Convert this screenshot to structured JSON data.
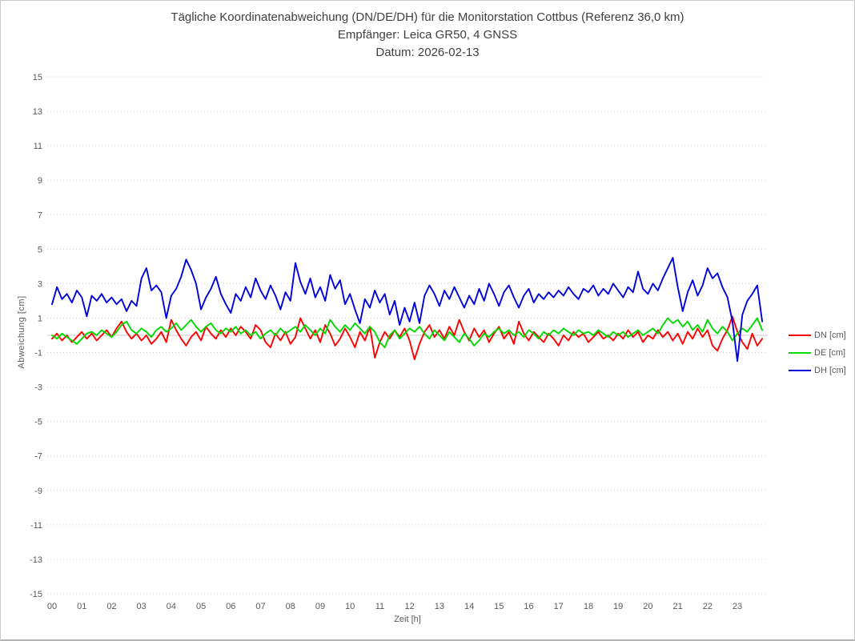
{
  "window": {
    "background": "#ffffff",
    "border_color": "#c9c9c9"
  },
  "title": {
    "line1": "Tägliche Koordinatenabweichung (DN/DE/DH) für die Monitorstation Cottbus (Referenz 36,0 km)",
    "line2": "Empfänger: Leica GR50, 4 GNSS",
    "line3": "Datum: 2026-02-13"
  },
  "axes": {
    "y_label": "Abweichung [cm]",
    "x_label": "Zeit [h]",
    "y_ticks": [
      "15",
      "13",
      "11",
      "9",
      "7",
      "5",
      "3",
      "1",
      "-1",
      "-3",
      "-5",
      "-7",
      "-9",
      "-11",
      "-13",
      "-15"
    ],
    "x_ticks": [
      "00",
      "01",
      "02",
      "03",
      "04",
      "05",
      "06",
      "07",
      "08",
      "09",
      "10",
      "11",
      "12",
      "13",
      "14",
      "15",
      "16",
      "17",
      "18",
      "19",
      "20",
      "21",
      "22",
      "23"
    ]
  },
  "legend": {
    "items": [
      {
        "label": "DN [cm]",
        "color": "#ff0000"
      },
      {
        "label": "DE [cm]",
        "color": "#00d900"
      },
      {
        "label": "DH [cm]",
        "color": "#0000dd"
      }
    ]
  },
  "colors": {
    "gridline": "#d6d6d6",
    "zero_line": "#c8c8c8",
    "tick_text": "#595959",
    "title_text": "#3f3f3f"
  },
  "chart_data": {
    "type": "line",
    "title": "Tägliche Koordinatenabweichung (DN/DE/DH) für die Monitorstation Cottbus (Referenz 36,0 km)",
    "subtitle": "Empfänger: Leica GR50, 4 GNSS",
    "date_label": "Datum: 2026-02-13",
    "xlabel": "Zeit [h]",
    "ylabel": "Abweichung [cm]",
    "xlim_hours": [
      0,
      24
    ],
    "ylim": [
      -15,
      15
    ],
    "y_tick_step": 2,
    "grid": "horizontal-dotted",
    "legend_position": "right",
    "x_start_hour": 0,
    "sample_interval_minutes": 10,
    "series": [
      {
        "name": "DN [cm]",
        "color": "#ff0000",
        "values": [
          -0.2,
          0.1,
          -0.3,
          0,
          -0.4,
          -0.1,
          0.2,
          -0.2,
          0.1,
          -0.3,
          0,
          0.3,
          -0.1,
          0.4,
          0.8,
          0.2,
          -0.2,
          0.1,
          -0.3,
          0,
          -0.5,
          -0.2,
          0.2,
          -0.4,
          0.9,
          0.3,
          -0.2,
          -0.6,
          -0.1,
          0.2,
          -0.3,
          0.5,
          0.1,
          -0.2,
          0.3,
          -0.1,
          0.4,
          0,
          0.5,
          0.2,
          -0.2,
          0.6,
          0.3,
          -0.4,
          -0.7,
          0.1,
          -0.3,
          0.2,
          -0.5,
          -0.1,
          1,
          0.4,
          -0.2,
          0.3,
          -0.4,
          0.6,
          0.1,
          -0.6,
          -0.2,
          0.4,
          -0.1,
          -0.7,
          0.2,
          -0.3,
          0.5,
          -1.3,
          -0.4,
          0.2,
          -0.2,
          0.3,
          -0.1,
          0.4,
          -0.3,
          -1.4,
          -0.5,
          0.2,
          0.6,
          -0.1,
          0.3,
          -0.2,
          0.5,
          0,
          0.9,
          0.2,
          -0.3,
          0.4,
          -0.1,
          0.3,
          -0.4,
          0.1,
          0.5,
          -0.2,
          0.2,
          -0.5,
          0.8,
          0.1,
          -0.3,
          0.2,
          -0.1,
          -0.4,
          0.1,
          -0.2,
          -0.6,
          0,
          -0.3,
          0.2,
          -0.1,
          0.1,
          -0.4,
          -0.1,
          0.2,
          -0.2,
          0,
          -0.3,
          0.1,
          -0.2,
          0.3,
          -0.1,
          0.2,
          -0.4,
          0,
          -0.2,
          0.3,
          -0.1,
          0.2,
          -0.3,
          0.1,
          -0.5,
          0.2,
          -0.2,
          0.4,
          -0.1,
          0.3,
          -0.6,
          -0.9,
          -0.2,
          0.3,
          1.1,
          0.2,
          -0.4,
          -0.8,
          0.1,
          -0.6,
          -0.2
        ]
      },
      {
        "name": "DE [cm]",
        "color": "#00d900",
        "values": [
          0,
          -0.2,
          0.1,
          -0.1,
          -0.3,
          -0.5,
          -0.2,
          0.1,
          0.2,
          0,
          0.3,
          0.1,
          -0.1,
          0.2,
          0.6,
          0.8,
          0.3,
          0.1,
          0.4,
          0.2,
          -0.1,
          0.3,
          0.5,
          0.2,
          0.4,
          0.7,
          0.3,
          0.6,
          0.9,
          0.5,
          0.2,
          0.5,
          0.7,
          0.3,
          0.1,
          0.4,
          0.2,
          0.5,
          0.1,
          0.3,
          0,
          0.2,
          -0.2,
          0.1,
          0.3,
          0,
          0.4,
          0.1,
          0.3,
          0.5,
          0.2,
          0.6,
          0.3,
          0,
          0.4,
          0.1,
          0.9,
          0.5,
          0.2,
          0.6,
          0.3,
          0.7,
          0.4,
          0.1,
          0.5,
          0.2,
          -0.4,
          -0.7,
          0,
          0.3,
          -0.2,
          0.1,
          0.4,
          0.2,
          0.5,
          0.1,
          -0.2,
          0.3,
          0,
          -0.3,
          0.2,
          -0.1,
          -0.4,
          0.1,
          -0.2,
          -0.6,
          -0.3,
          0.1,
          -0.1,
          0.2,
          0.4,
          0.1,
          0.3,
          0,
          0.2,
          -0.1,
          0.3,
          0.1,
          -0.2,
          0.2,
          0,
          0.3,
          0.1,
          0.4,
          0.2,
          0,
          0.3,
          0.1,
          0.2,
          0,
          0.3,
          0.1,
          -0.1,
          0.2,
          0,
          0.2,
          -0.1,
          0.1,
          0.3,
          0,
          0.2,
          0.4,
          0.1,
          0.6,
          1,
          0.7,
          0.9,
          0.5,
          0.8,
          0.3,
          0.6,
          0.2,
          0.9,
          0.4,
          0.1,
          0.5,
          0.2,
          -0.3,
          0.1,
          0.4,
          0.2,
          0.6,
          1,
          0.3
        ]
      },
      {
        "name": "DH [cm]",
        "color": "#0000dd",
        "values": [
          1.8,
          2.8,
          2.1,
          2.4,
          1.9,
          2.6,
          2.2,
          1.1,
          2.3,
          2,
          2.4,
          1.9,
          2.2,
          1.8,
          2.1,
          1.4,
          2,
          1.7,
          3.3,
          3.9,
          2.6,
          2.9,
          2.5,
          1,
          2.3,
          2.7,
          3.4,
          4.4,
          3.8,
          3,
          1.5,
          2.2,
          2.7,
          3.4,
          2.4,
          1.8,
          1.3,
          2.4,
          2,
          2.8,
          2.2,
          3.3,
          2.6,
          2.1,
          2.9,
          2.3,
          1.5,
          2.5,
          2,
          4.2,
          3.1,
          2.4,
          3.3,
          2.2,
          2.8,
          2,
          3.5,
          2.7,
          3.2,
          1.8,
          2.4,
          1.5,
          0.7,
          2.1,
          1.6,
          2.6,
          1.9,
          2.4,
          1.2,
          2,
          0.6,
          1.6,
          0.8,
          1.9,
          0.7,
          2.3,
          2.9,
          2.4,
          1.7,
          2.6,
          2.1,
          2.8,
          2.2,
          1.6,
          2.3,
          1.8,
          2.7,
          2,
          3,
          2.4,
          1.7,
          2.5,
          2.9,
          2.2,
          1.6,
          2.3,
          2.7,
          1.9,
          2.4,
          2.1,
          2.5,
          2.2,
          2.6,
          2.3,
          2.8,
          2.4,
          2.1,
          2.7,
          2.5,
          2.9,
          2.3,
          2.7,
          2.4,
          3,
          2.6,
          2.2,
          2.8,
          2.5,
          3.7,
          2.7,
          2.4,
          3,
          2.6,
          3.3,
          3.9,
          4.5,
          2.8,
          1.4,
          2.5,
          3.2,
          2.3,
          2.9,
          3.9,
          3.3,
          3.6,
          2.8,
          2.2,
          0.8,
          -1.5,
          1.2,
          2,
          2.4,
          2.9,
          0.8
        ]
      }
    ]
  }
}
